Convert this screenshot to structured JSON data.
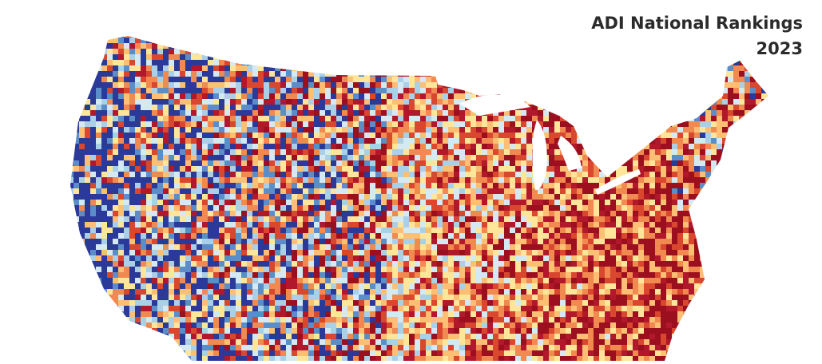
{
  "header": {
    "title": "ADI National Rankings",
    "year": "2023"
  }
}
